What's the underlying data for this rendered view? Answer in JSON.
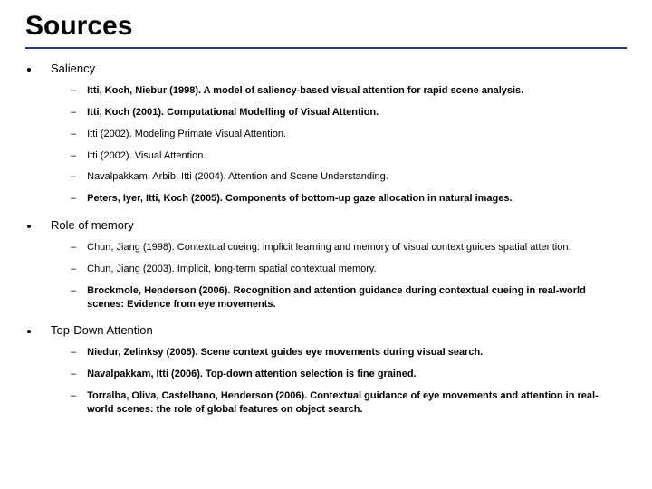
{
  "title": "Sources",
  "rule_color": "#243d7a",
  "background_color": "#ffffff",
  "text_color": "#000000",
  "title_fontsize": 30,
  "section_label_fontsize": 13,
  "item_fontsize": 11,
  "sections": [
    {
      "label": "Saliency",
      "items": [
        {
          "text": "Itti, Koch, Niebur (1998). A model of saliency-based visual attention for rapid scene analysis.",
          "bold": true
        },
        {
          "text": "Itti, Koch (2001). Computational Modelling of Visual Attention.",
          "bold": true
        },
        {
          "text": "Itti (2002). Modeling Primate Visual Attention.",
          "bold": false
        },
        {
          "text": "Itti (2002). Visual Attention.",
          "bold": false
        },
        {
          "text": "Navalpakkam, Arbib, Itti (2004). Attention and Scene Understanding.",
          "bold": false
        },
        {
          "text": "Peters, Iyer, Itti, Koch (2005). Components of bottom-up gaze allocation in natural images.",
          "bold": true
        }
      ]
    },
    {
      "label": "Role of memory",
      "items": [
        {
          "text": "Chun, Jiang (1998). Contextual cueing: implicit learning and memory of visual context guides spatial attention.",
          "bold": false
        },
        {
          "text": "Chun, Jiang (2003). Implicit, long-term spatial contextual memory.",
          "bold": false
        },
        {
          "text": "Brockmole, Henderson (2006). Recognition and attention guidance during contextual cueing in real-world scenes: Evidence from eye movements.",
          "bold": true
        }
      ]
    },
    {
      "label": "Top-Down Attention",
      "items": [
        {
          "text": "Niedur, Zelinksy (2005). Scene context guides eye movements during visual search.",
          "bold": true
        },
        {
          "text": "Navalpakkam, Itti (2006). Top-down attention selection is fine grained.",
          "bold": true
        },
        {
          "text": "Torralba, Oliva, Castelhano, Henderson (2006). Contextual guidance of eye movements and attention in real-world scenes: the role of global features on object search.",
          "bold": true
        }
      ]
    }
  ]
}
